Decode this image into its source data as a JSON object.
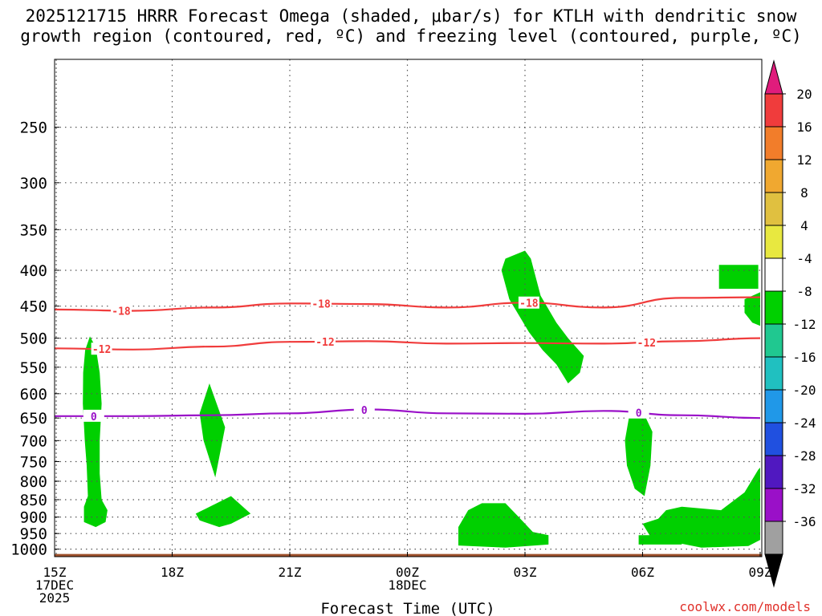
{
  "chart_data": {
    "type": "heatmap",
    "title_line1": "2025121715 HRRR Forecast Omega (shaded, μbar/s) for KTLH with dendritic snow",
    "title_line2": "growth region (contoured, red, ºC) and freezing level (contoured, purple, ºC)",
    "xlabel": "Forecast Time (UTC)",
    "ylabel": "",
    "x_range_hours": [
      0,
      18
    ],
    "y_range_hpa": [
      200,
      1025
    ],
    "y_axis": "log-pressure (inverted)",
    "x_ticks": [
      {
        "h": 0,
        "lines": [
          "15Z",
          "17DEC",
          "2025"
        ]
      },
      {
        "h": 3,
        "lines": [
          "18Z"
        ]
      },
      {
        "h": 6,
        "lines": [
          "21Z"
        ]
      },
      {
        "h": 9,
        "lines": [
          "00Z",
          "18DEC"
        ]
      },
      {
        "h": 12,
        "lines": [
          "03Z"
        ]
      },
      {
        "h": 15,
        "lines": [
          "06Z"
        ]
      },
      {
        "h": 18,
        "lines": [
          "09Z"
        ]
      }
    ],
    "y_ticks": [
      250,
      300,
      350,
      400,
      450,
      500,
      550,
      600,
      650,
      700,
      750,
      800,
      850,
      900,
      950,
      1000
    ],
    "grid": true,
    "colorbar": {
      "labels": [
        20,
        16,
        12,
        8,
        4,
        -4,
        -8,
        -12,
        -16,
        -20,
        -24,
        -28,
        -32,
        -36
      ],
      "colors": [
        "#f03c3c",
        "#f27d2a",
        "#f0a830",
        "#e0c040",
        "#e8e840",
        "#ffffff",
        "#00d000",
        "#20c890",
        "#20c0c0",
        "#2098e8",
        "#2050e0",
        "#5018c0",
        "#9a10c8",
        "#a0a0a0"
      ],
      "top_extend_color": "#e01c7c",
      "bottom_extend_color": "#000000"
    },
    "contours": [
      {
        "name": "dgz_-18C",
        "color": "#f03c3c",
        "label": "-18",
        "points": [
          [
            0,
            455
          ],
          [
            2,
            457
          ],
          [
            4,
            452
          ],
          [
            6,
            446
          ],
          [
            8,
            447
          ],
          [
            10,
            452
          ],
          [
            12,
            445
          ],
          [
            14,
            452
          ],
          [
            16,
            438
          ],
          [
            18,
            437
          ]
        ],
        "label_hours": [
          1.7,
          6.8,
          12.1
        ]
      },
      {
        "name": "dgz_-12C",
        "color": "#f03c3c",
        "label": "-12",
        "points": [
          [
            0,
            517
          ],
          [
            2,
            519
          ],
          [
            4,
            514
          ],
          [
            6,
            506
          ],
          [
            8,
            505
          ],
          [
            10,
            509
          ],
          [
            12,
            508
          ],
          [
            14,
            509
          ],
          [
            16,
            505
          ],
          [
            18,
            500
          ]
        ],
        "label_hours": [
          1.2,
          6.9,
          15.1
        ]
      },
      {
        "name": "freezing_0C",
        "color": "#9a10c8",
        "label": "0",
        "points": [
          [
            0,
            646
          ],
          [
            2,
            646
          ],
          [
            4,
            644
          ],
          [
            6,
            640
          ],
          [
            8,
            632
          ],
          [
            10,
            640
          ],
          [
            12,
            641
          ],
          [
            14,
            635
          ],
          [
            16,
            644
          ],
          [
            18,
            650
          ]
        ],
        "label_hours": [
          1.0,
          7.9,
          14.9
        ]
      }
    ],
    "omega_regions": [
      {
        "name": "omega-neg-1",
        "value_band": "-8 to -4",
        "polygon": [
          [
            0.9,
            497
          ],
          [
            1.05,
            515
          ],
          [
            1.15,
            560
          ],
          [
            1.2,
            620
          ],
          [
            1.15,
            700
          ],
          [
            1.15,
            780
          ],
          [
            1.2,
            850
          ],
          [
            1.35,
            880
          ],
          [
            1.3,
            915
          ],
          [
            1.05,
            930
          ],
          [
            0.75,
            915
          ],
          [
            0.75,
            870
          ],
          [
            0.85,
            840
          ],
          [
            0.82,
            760
          ],
          [
            0.77,
            700
          ],
          [
            0.72,
            620
          ],
          [
            0.73,
            560
          ],
          [
            0.78,
            520
          ]
        ]
      },
      {
        "name": "omega-neg-2",
        "value_band": "-8 to -4",
        "polygon": [
          [
            3.95,
            580
          ],
          [
            4.35,
            670
          ],
          [
            4.1,
            790
          ],
          [
            3.8,
            700
          ],
          [
            3.7,
            640
          ]
        ]
      },
      {
        "name": "omega-neg-3",
        "value_band": "-8 to -4",
        "polygon": [
          [
            3.6,
            890
          ],
          [
            4.5,
            840
          ],
          [
            5.0,
            890
          ],
          [
            4.5,
            920
          ],
          [
            4.2,
            930
          ],
          [
            3.7,
            910
          ]
        ]
      },
      {
        "name": "omega-neg-4",
        "value_band": "-8 to -4",
        "polygon": [
          [
            11.2,
            860
          ],
          [
            11.5,
            860
          ],
          [
            11.8,
            895
          ],
          [
            12.2,
            945
          ],
          [
            12.6,
            955
          ],
          [
            12.6,
            985
          ],
          [
            11.5,
            995
          ],
          [
            10.3,
            988
          ],
          [
            10.3,
            930
          ],
          [
            10.55,
            880
          ],
          [
            10.9,
            860
          ]
        ]
      },
      {
        "name": "omega-neg-5",
        "value_band": "-8 to -4",
        "polygon": [
          [
            12.0,
            375
          ],
          [
            12.15,
            385
          ],
          [
            12.4,
            435
          ],
          [
            12.8,
            475
          ],
          [
            13.1,
            500
          ],
          [
            13.5,
            530
          ],
          [
            13.4,
            560
          ],
          [
            13.1,
            580
          ],
          [
            12.8,
            545
          ],
          [
            12.45,
            520
          ],
          [
            12.1,
            490
          ],
          [
            11.6,
            440
          ],
          [
            11.4,
            400
          ],
          [
            11.5,
            385
          ]
        ]
      },
      {
        "name": "omega-neg-6",
        "value_band": "-8 to -4",
        "polygon": [
          [
            14.8,
            630
          ],
          [
            15.0,
            635
          ],
          [
            15.25,
            680
          ],
          [
            15.2,
            760
          ],
          [
            15.05,
            840
          ],
          [
            14.8,
            820
          ],
          [
            14.6,
            760
          ],
          [
            14.55,
            700
          ],
          [
            14.65,
            650
          ]
        ]
      },
      {
        "name": "omega-neg-7",
        "value_band": "-8 to -4",
        "polygon": [
          [
            15.4,
            905
          ],
          [
            15.6,
            880
          ],
          [
            16.0,
            870
          ],
          [
            17.0,
            880
          ],
          [
            17.6,
            830
          ],
          [
            17.95,
            770
          ],
          [
            18,
            765
          ],
          [
            18,
            970
          ],
          [
            17.7,
            990
          ],
          [
            16.5,
            995
          ],
          [
            15.7,
            975
          ],
          [
            15.2,
            960
          ],
          [
            15.0,
            920
          ]
        ]
      },
      {
        "name": "omega-neg-8",
        "value_band": "-8 to -4",
        "polygon": [
          [
            14.9,
            955
          ],
          [
            16.0,
            955
          ],
          [
            16.0,
            985
          ],
          [
            14.9,
            985
          ]
        ]
      },
      {
        "name": "omega-neg-9",
        "value_band": "-8 to -4",
        "polygon": [
          [
            16.95,
            393
          ],
          [
            17.95,
            393
          ],
          [
            17.95,
            425
          ],
          [
            16.95,
            425
          ]
        ]
      },
      {
        "name": "omega-neg-10",
        "value_band": "-8 to -4",
        "polygon": [
          [
            18,
            430
          ],
          [
            17.6,
            440
          ],
          [
            17.6,
            460
          ],
          [
            17.8,
            475
          ],
          [
            18,
            480
          ]
        ]
      }
    ],
    "terrain": {
      "color": "#a0522d",
      "top_hpa": 1016
    }
  },
  "credit": "coolwx.com/models"
}
